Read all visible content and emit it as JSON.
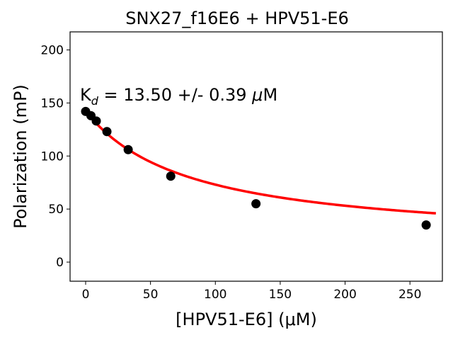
{
  "chart_data": {
    "type": "scatter",
    "title": "SNX27_f16E6 + HPV51-E6",
    "xlabel": "[HPV51-E6] (μM)",
    "ylabel": "Polarization (mP)",
    "xlim": [
      -12,
      275
    ],
    "ylim": [
      -18,
      217
    ],
    "xticks": [
      0,
      50,
      100,
      150,
      200,
      250
    ],
    "yticks": [
      0,
      50,
      100,
      150,
      200
    ],
    "grid": false,
    "annotation": {
      "base": "K",
      "subscript": "d",
      "text": " = 13.50 +/- 0.39 ",
      "unit_symbol": "μ",
      "unit": "M"
    },
    "series": [
      {
        "kind": "points",
        "color": "#000000",
        "x": [
          0,
          4.1,
          8.2,
          16.4,
          32.8,
          65.6,
          131.3,
          262.5
        ],
        "y": [
          142,
          138,
          133,
          123,
          106,
          81,
          55,
          35
        ]
      },
      {
        "kind": "fit-curve",
        "color": "#ff0000",
        "x_range": [
          0,
          270
        ],
        "fit": {
          "top": 142.4,
          "bottom": 17.3,
          "kd": 80.3
        }
      }
    ]
  }
}
